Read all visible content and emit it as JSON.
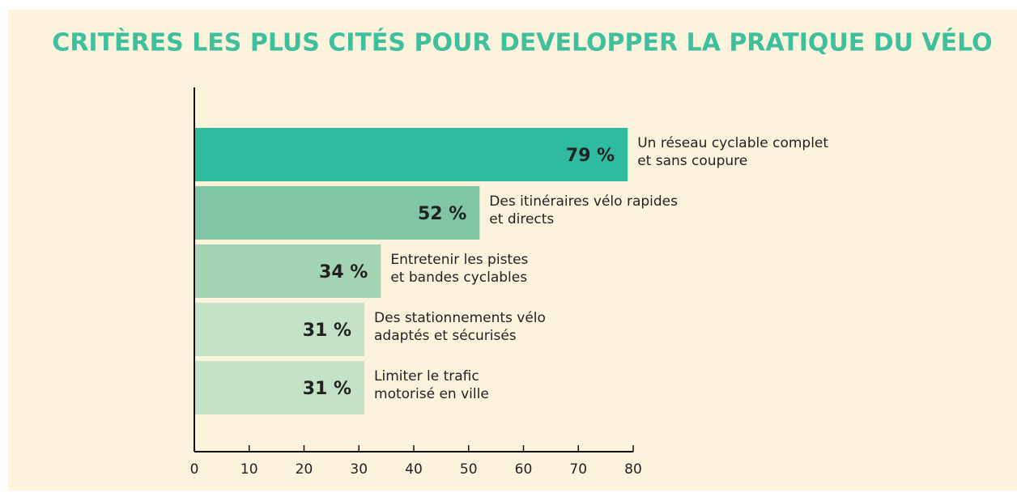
{
  "chart_data": {
    "type": "barh",
    "title": "CRITÈRES LES PLUS CITÉS POUR DEVELOPPER LA PRATIQUE DU VÉLO",
    "categories": [
      "Un réseau cyclable complet\net sans coupure",
      "Des itinéraires vélo rapides\net directs",
      "Entretenir les pistes\net bandes cyclables",
      "Des stationnements vélo\nadaptés et sécurisés",
      "Limiter le trafic\nmotorisé en ville"
    ],
    "values": [
      79,
      52,
      34,
      31,
      31
    ],
    "value_labels": [
      "79 %",
      "52 %",
      "34 %",
      "31 %",
      "31 %"
    ],
    "colors": [
      "#2fbc9e",
      "#7fc5a6",
      "#a3d4b4",
      "#c4e2c6",
      "#c4e2c6"
    ],
    "xlim": [
      0,
      80
    ],
    "xticks": [
      0,
      10,
      20,
      30,
      40,
      50,
      60,
      70,
      80
    ]
  }
}
